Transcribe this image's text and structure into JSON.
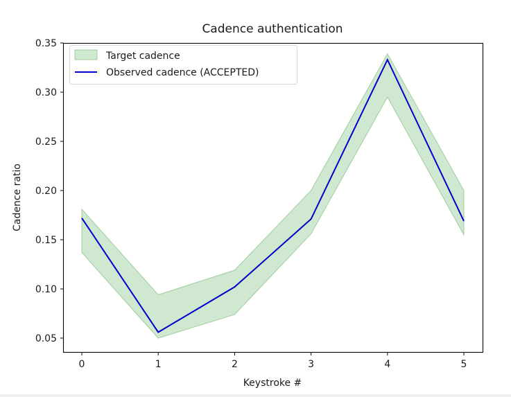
{
  "chart_data": {
    "type": "line",
    "title": "Cadence authentication",
    "xlabel": "Keystroke #",
    "ylabel": "Cadence ratio",
    "x": [
      0,
      1,
      2,
      3,
      4,
      5
    ],
    "xticks": [
      "0",
      "1",
      "2",
      "3",
      "4",
      "5"
    ],
    "yticks": [
      "0.05",
      "0.10",
      "0.15",
      "0.20",
      "0.25",
      "0.30",
      "0.35"
    ],
    "ytick_values": [
      0.05,
      0.1,
      0.15,
      0.2,
      0.25,
      0.3,
      0.35
    ],
    "xlim": [
      -0.25,
      5.25
    ],
    "ylim": [
      0.035,
      0.35
    ],
    "grid": false,
    "legend_position": "upper left",
    "series": [
      {
        "name": "Target cadence",
        "kind": "band",
        "color": "#a8d5a8",
        "upper": [
          0.181,
          0.094,
          0.119,
          0.2,
          0.339,
          0.2
        ],
        "lower": [
          0.137,
          0.05,
          0.074,
          0.156,
          0.295,
          0.155
        ]
      },
      {
        "name": "Observed cadence (ACCEPTED)",
        "kind": "line",
        "color": "#0000cc",
        "values": [
          0.172,
          0.056,
          0.102,
          0.171,
          0.333,
          0.169
        ]
      }
    ]
  },
  "legend": {
    "items": [
      {
        "label": "Target cadence"
      },
      {
        "label": "Observed cadence (ACCEPTED)"
      }
    ]
  }
}
